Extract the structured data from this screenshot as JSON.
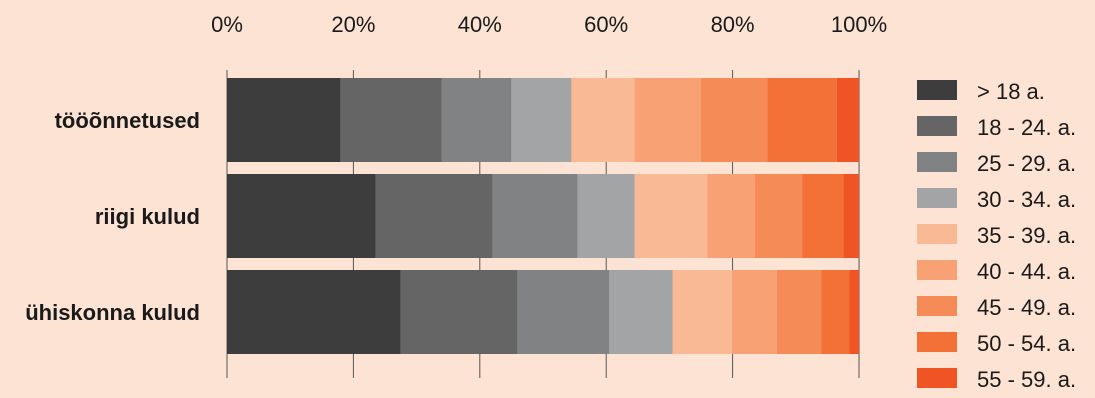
{
  "chart_data": {
    "type": "bar",
    "orientation": "horizontal",
    "stacked": "percent",
    "title": "",
    "xlabel": "",
    "ylabel": "",
    "xlim": [
      0,
      100
    ],
    "x_ticks": [
      "0%",
      "20%",
      "40%",
      "60%",
      "80%",
      "100%"
    ],
    "grid": true,
    "legend_position": "right",
    "categories": [
      "tööõnnetused",
      "riigi kulud",
      "ühiskonna kulud"
    ],
    "series": [
      {
        "name": "> 18 a.",
        "color": "#3d3d3d",
        "values": [
          18,
          23.5,
          27.5
        ]
      },
      {
        "name": "18 - 24. a.",
        "color": "#656566",
        "values": [
          16,
          18.5,
          18.5
        ]
      },
      {
        "name": "25 - 29. a.",
        "color": "#818284",
        "values": [
          11,
          13.5,
          14.5
        ]
      },
      {
        "name": "30 - 34. a.",
        "color": "#a3a4a6",
        "values": [
          9.5,
          9,
          10
        ]
      },
      {
        "name": "35 - 39. a.",
        "color": "#f9b995",
        "values": [
          10,
          11.5,
          9.5
        ]
      },
      {
        "name": "40 - 44. a.",
        "color": "#f7a174",
        "values": [
          10.5,
          7.5,
          7
        ]
      },
      {
        "name": "45 - 49. a.",
        "color": "#f58b57",
        "values": [
          10.5,
          7.5,
          7
        ]
      },
      {
        "name": "50 - 54. a.",
        "color": "#f37036",
        "values": [
          11,
          6.5,
          4.5
        ]
      },
      {
        "name": "55 - 59. a.",
        "color": "#f15424",
        "values": [
          3.5,
          2.5,
          1.5
        ]
      }
    ]
  }
}
